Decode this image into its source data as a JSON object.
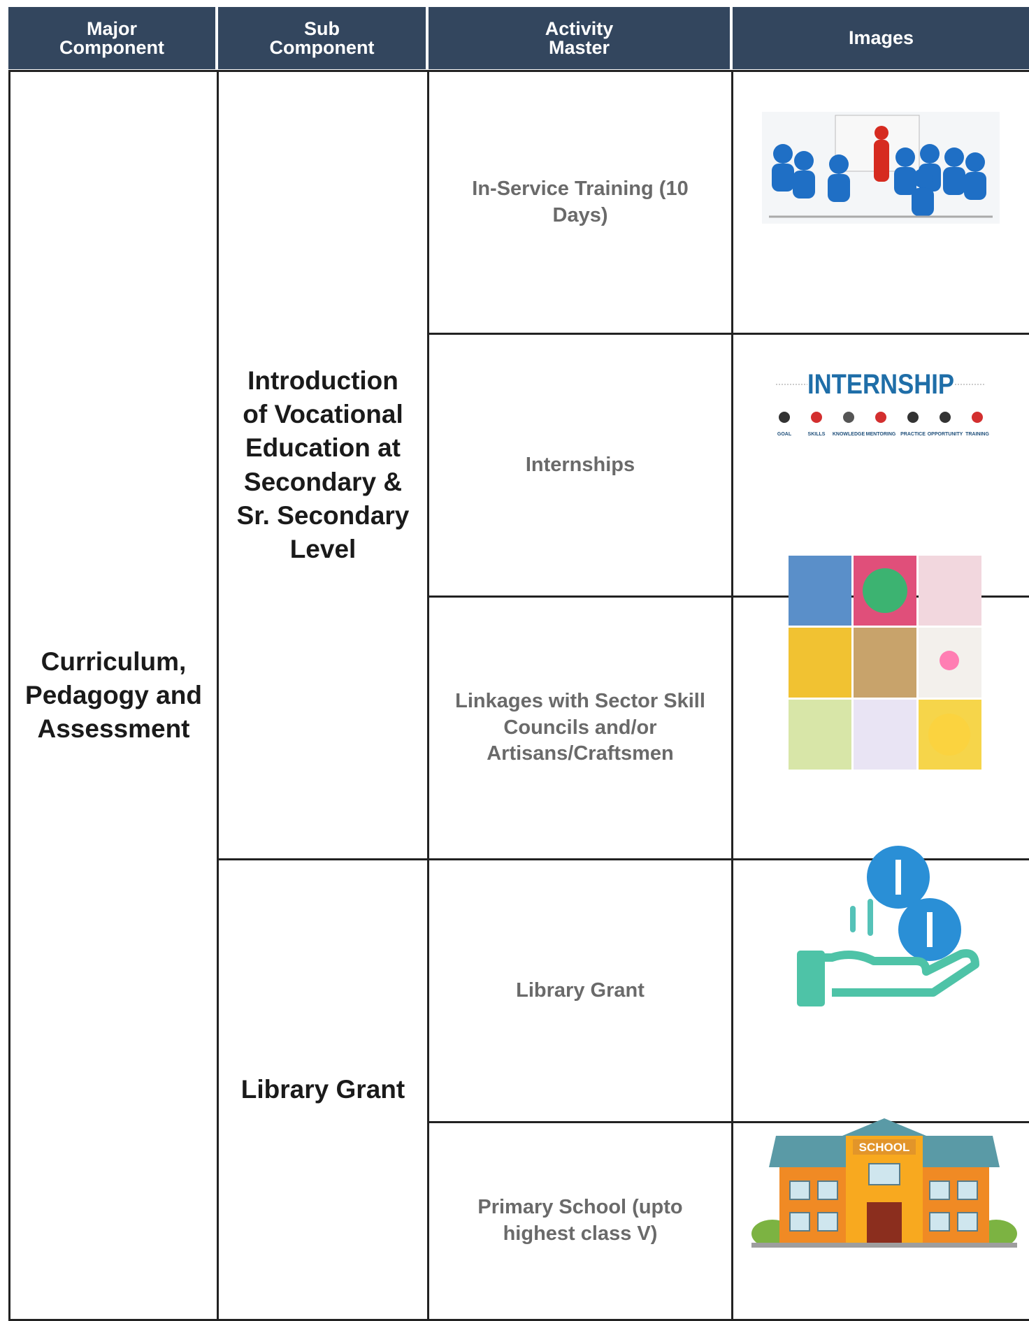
{
  "header": [
    "Major Component",
    "Sub Component",
    "Activity Master",
    "Images"
  ],
  "major_component": "Curriculum, Pedagogy and Assessment",
  "sub_components": [
    {
      "label": "Introduction of Vocational Education at Secondary & Sr. Secondary Level",
      "activities": [
        "In-Service Training (10 Days)",
        "Internships",
        "Linkages with Sector Skill Councils and/or Artisans/Craftsmen"
      ]
    },
    {
      "label": "Library Grant",
      "activities": [
        "Library Grant",
        "Primary School (upto highest class V)"
      ]
    }
  ],
  "images": {
    "internship": {
      "title": "INTERNSHIP",
      "labels": [
        "GOAL",
        "SKILLS",
        "KNOWLEDGE",
        "MENTORING",
        "PRACTICE",
        "OPPORTUNITY",
        "TRAINING"
      ]
    },
    "school_sign": "SCHOOL"
  }
}
